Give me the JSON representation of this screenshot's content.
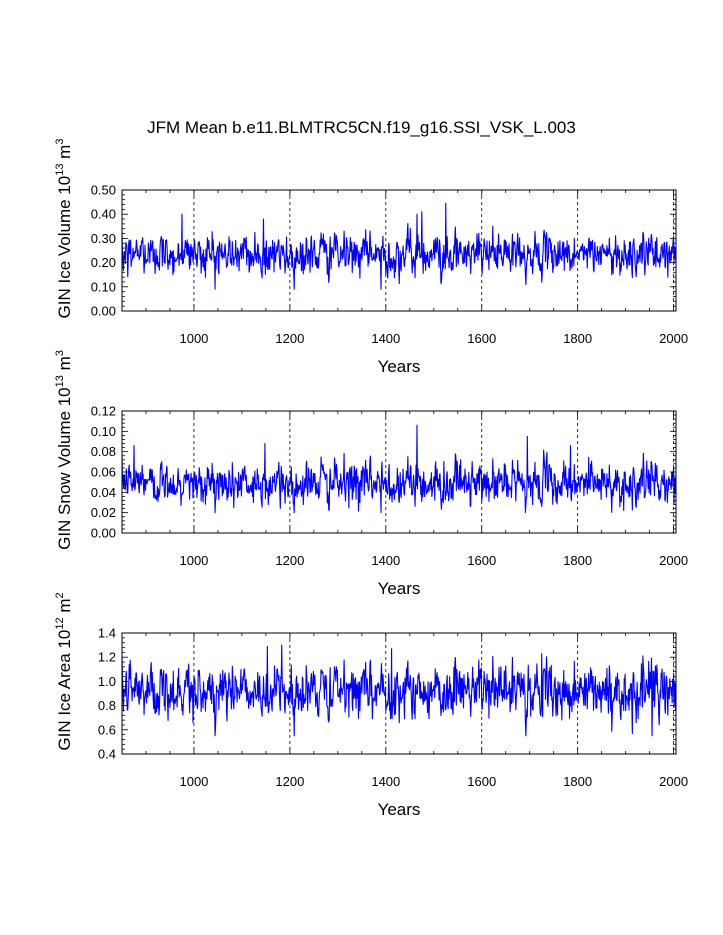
{
  "title": "JFM Mean b.e11.BLMTRC5CN.f19_g16.SSI_VSK_L.003",
  "chart_data": [
    {
      "type": "line",
      "name": "ice-volume",
      "title": "JFM Mean b.e11.BLMTRC5CN.f19_g16.SSI_VSK_L.003",
      "xlabel": "Years",
      "ylabel": "GIN Ice Volume 10",
      "ylabel_sup": "13",
      "ylabel_unit": "m",
      "ylabel_unit_sup": "3",
      "xlim": [
        850,
        2005
      ],
      "ylim": [
        0.0,
        0.5
      ],
      "xticks": [
        1000,
        1200,
        1400,
        1600,
        1800,
        2000
      ],
      "yticks": [
        "0.00",
        "0.10",
        "0.20",
        "0.30",
        "0.40",
        "0.50"
      ],
      "mean": 0.235,
      "spread": 0.045,
      "min": 0.09,
      "max": 0.445,
      "spikes": [
        [
          1390,
          0.09
        ],
        [
          1475,
          0.41
        ],
        [
          1525,
          0.445
        ],
        [
          1465,
          0.4
        ],
        [
          975,
          0.4
        ],
        [
          1145,
          0.38
        ]
      ],
      "line_color": "#0000ff"
    },
    {
      "type": "line",
      "name": "snow-volume",
      "xlabel": "Years",
      "ylabel": "GIN Snow Volume 10",
      "ylabel_sup": "13",
      "ylabel_unit": "m",
      "ylabel_unit_sup": "3",
      "xlim": [
        850,
        2005
      ],
      "ylim": [
        0.0,
        0.12
      ],
      "xticks": [
        1000,
        1200,
        1400,
        1600,
        1800,
        2000
      ],
      "yticks": [
        "0.00",
        "0.02",
        "0.04",
        "0.06",
        "0.08",
        "0.10",
        "0.12"
      ],
      "mean": 0.049,
      "spread": 0.011,
      "min": 0.02,
      "max": 0.106,
      "spikes": [
        [
          1465,
          0.106
        ],
        [
          1390,
          0.02
        ],
        [
          1695,
          0.095
        ],
        [
          1785,
          0.086
        ],
        [
          875,
          0.086
        ],
        [
          1148,
          0.088
        ]
      ],
      "line_color": "#0000ff"
    },
    {
      "type": "line",
      "name": "ice-area",
      "xlabel": "Years",
      "ylabel": "GIN Ice Area 10",
      "ylabel_sup": "12",
      "ylabel_unit": "m",
      "ylabel_unit_sup": "2",
      "xlim": [
        850,
        2005
      ],
      "ylim": [
        0.4,
        1.4
      ],
      "xticks": [
        1000,
        1200,
        1400,
        1600,
        1800,
        2000
      ],
      "yticks": [
        "0.4",
        "0.6",
        "0.8",
        "1.0",
        "1.2",
        "1.4"
      ],
      "mean": 0.92,
      "spread": 0.12,
      "min": 0.55,
      "max": 1.3,
      "spikes": [
        [
          1183,
          1.3
        ],
        [
          1153,
          1.29
        ],
        [
          1412,
          1.27
        ],
        [
          1725,
          1.23
        ],
        [
          1955,
          0.55
        ],
        [
          1045,
          0.62
        ]
      ],
      "line_color": "#0000ff"
    }
  ]
}
